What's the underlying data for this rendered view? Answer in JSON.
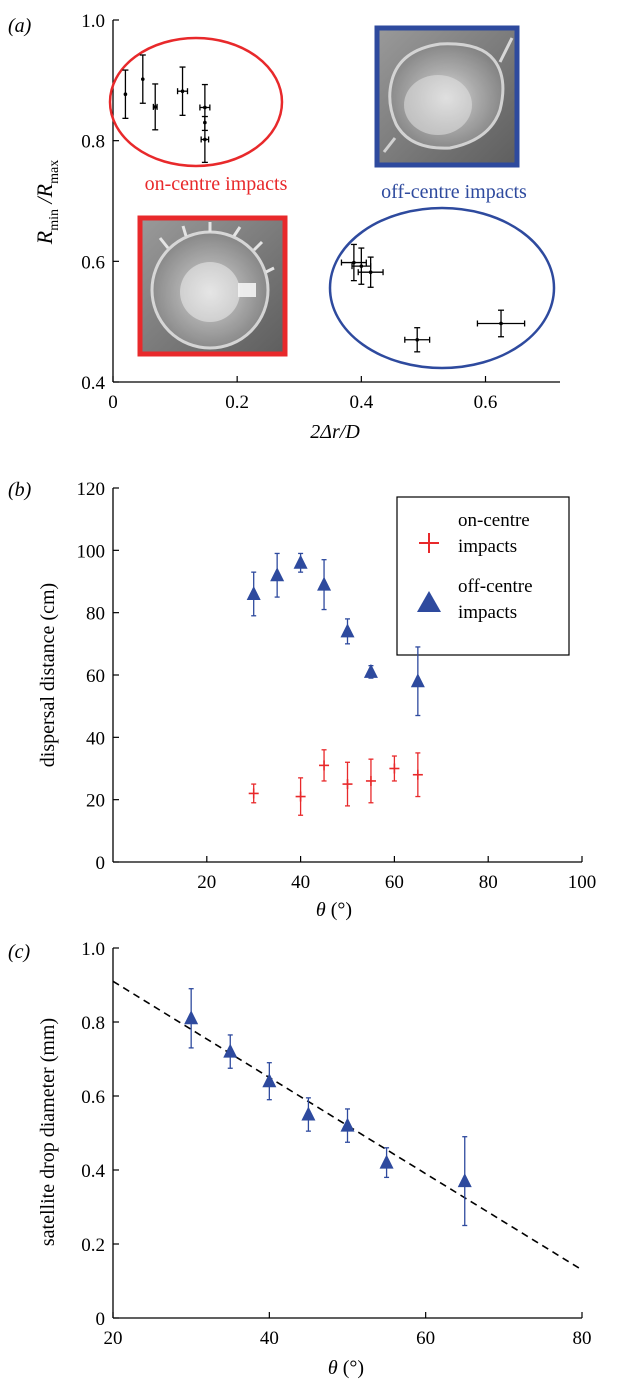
{
  "colors": {
    "red": "#e8292b",
    "blue": "#2e4a9e",
    "black": "#000000"
  },
  "chart_data": [
    {
      "id": "a",
      "panel_label": "(a)",
      "type": "scatter",
      "xlim": [
        0,
        0.72
      ],
      "ylim": [
        0.4,
        1.0
      ],
      "xticks": [
        "0",
        "0.2",
        "0.4",
        "0.6"
      ],
      "xtick_values": [
        0,
        0.2,
        0.4,
        0.6
      ],
      "yticks": [
        "0.4",
        "0.6",
        "0.8",
        "1.0"
      ],
      "ytick_values": [
        0.4,
        0.6,
        0.8,
        1.0
      ],
      "xlabel": "2Δr/D",
      "ylabel": {
        "base_r": "R",
        "sub_min": "min",
        "slash": " /",
        "base_r2": "R",
        "sub_max": "max"
      },
      "grid": false,
      "series": [
        {
          "name": "on-centre impacts",
          "color": "#000000",
          "points": [
            {
              "x": 0.02,
              "y": 0.877,
              "xerr": 0.0,
              "yerr": 0.04
            },
            {
              "x": 0.048,
              "y": 0.902,
              "xerr": 0.0,
              "yerr": 0.04
            },
            {
              "x": 0.068,
              "y": 0.856,
              "xerr": 0.003,
              "yerr": 0.038
            },
            {
              "x": 0.112,
              "y": 0.882,
              "xerr": 0.008,
              "yerr": 0.04
            },
            {
              "x": 0.148,
              "y": 0.855,
              "xerr": 0.008,
              "yerr": 0.038
            },
            {
              "x": 0.148,
              "y": 0.83,
              "xerr": 0.0,
              "yerr": 0.0
            },
            {
              "x": 0.148,
              "y": 0.802,
              "xerr": 0.006,
              "yerr": 0.038
            }
          ]
        },
        {
          "name": "off-centre impacts",
          "color": "#000000",
          "points": [
            {
              "x": 0.388,
              "y": 0.598,
              "xerr": 0.02,
              "yerr": 0.03
            },
            {
              "x": 0.4,
              "y": 0.592,
              "xerr": 0.015,
              "yerr": 0.03
            },
            {
              "x": 0.415,
              "y": 0.582,
              "xerr": 0.02,
              "yerr": 0.025
            },
            {
              "x": 0.49,
              "y": 0.47,
              "xerr": 0.02,
              "yerr": 0.02
            },
            {
              "x": 0.625,
              "y": 0.497,
              "xerr": 0.038,
              "yerr": 0.022
            }
          ]
        }
      ],
      "annotations": {
        "on_centre_label": "on-centre impacts",
        "off_centre_label": "off-centre impacts"
      }
    },
    {
      "id": "b",
      "panel_label": "(b)",
      "type": "scatter",
      "xlim": [
        0,
        100
      ],
      "ylim": [
        0,
        120
      ],
      "xticks": [
        "20",
        "40",
        "60",
        "80",
        "100"
      ],
      "xtick_values": [
        20,
        40,
        60,
        80,
        100
      ],
      "yticks": [
        "0",
        "20",
        "40",
        "60",
        "80",
        "100",
        "120"
      ],
      "ytick_values": [
        0,
        20,
        40,
        60,
        80,
        100,
        120
      ],
      "xlabel_symbol": "θ",
      "xlabel_unit": " (°)",
      "ylabel": "dispersal distance (cm)",
      "grid": false,
      "legend_placement": "top-right",
      "series": [
        {
          "name": "on-centre impacts",
          "marker": "plus",
          "color": "#e8292b",
          "points": [
            {
              "x": 30,
              "y": 22,
              "yerr": 3
            },
            {
              "x": 40,
              "y": 21,
              "yerr": 6
            },
            {
              "x": 45,
              "y": 31,
              "yerr": 5
            },
            {
              "x": 50,
              "y": 25,
              "yerr": 7
            },
            {
              "x": 55,
              "y": 26,
              "yerr": 7
            },
            {
              "x": 60,
              "y": 30,
              "yerr": 4
            },
            {
              "x": 65,
              "y": 28,
              "yerr": 7
            }
          ]
        },
        {
          "name": "off-centre impacts",
          "marker": "triangle",
          "color": "#2e4a9e",
          "points": [
            {
              "x": 30,
              "y": 86,
              "yerr": 7
            },
            {
              "x": 35,
              "y": 92,
              "yerr": 7
            },
            {
              "x": 40,
              "y": 96,
              "yerr": 3
            },
            {
              "x": 45,
              "y": 89,
              "yerr": 8
            },
            {
              "x": 50,
              "y": 74,
              "yerr": 4
            },
            {
              "x": 55,
              "y": 61,
              "yerr": 2
            },
            {
              "x": 65,
              "y": 58,
              "yerr": 11
            }
          ]
        }
      ],
      "legend": [
        {
          "line1": "on-centre",
          "line2": "impacts",
          "marker": "plus"
        },
        {
          "line1": "off-centre",
          "line2": "impacts",
          "marker": "triangle"
        }
      ]
    },
    {
      "id": "c",
      "panel_label": "(c)",
      "type": "scatter",
      "xlim": [
        20,
        80
      ],
      "ylim": [
        0,
        1.0
      ],
      "xticks": [
        "20",
        "40",
        "60",
        "80"
      ],
      "xtick_values": [
        20,
        40,
        60,
        80
      ],
      "yticks": [
        "0",
        "0.2",
        "0.4",
        "0.6",
        "0.8",
        "1.0"
      ],
      "ytick_values": [
        0,
        0.2,
        0.4,
        0.6,
        0.8,
        1.0
      ],
      "xlabel_symbol": "θ",
      "xlabel_unit": " (°)",
      "ylabel": "satellite drop diameter (mm)",
      "grid": false,
      "series": [
        {
          "marker": "triangle",
          "color": "#2e4a9e",
          "points": [
            {
              "x": 30,
              "y": 0.81,
              "yerr": 0.08
            },
            {
              "x": 35,
              "y": 0.72,
              "yerr": 0.045
            },
            {
              "x": 40,
              "y": 0.64,
              "yerr": 0.05
            },
            {
              "x": 45,
              "y": 0.55,
              "yerr": 0.045
            },
            {
              "x": 50,
              "y": 0.52,
              "yerr": 0.045
            },
            {
              "x": 55,
              "y": 0.42,
              "yerr": 0.04
            },
            {
              "x": 65,
              "y": 0.37,
              "yerr": 0.12
            }
          ]
        }
      ],
      "fit_line": {
        "style": "dashed",
        "color": "#000000",
        "x": [
          20,
          80
        ],
        "y": [
          0.91,
          0.13
        ]
      }
    }
  ]
}
